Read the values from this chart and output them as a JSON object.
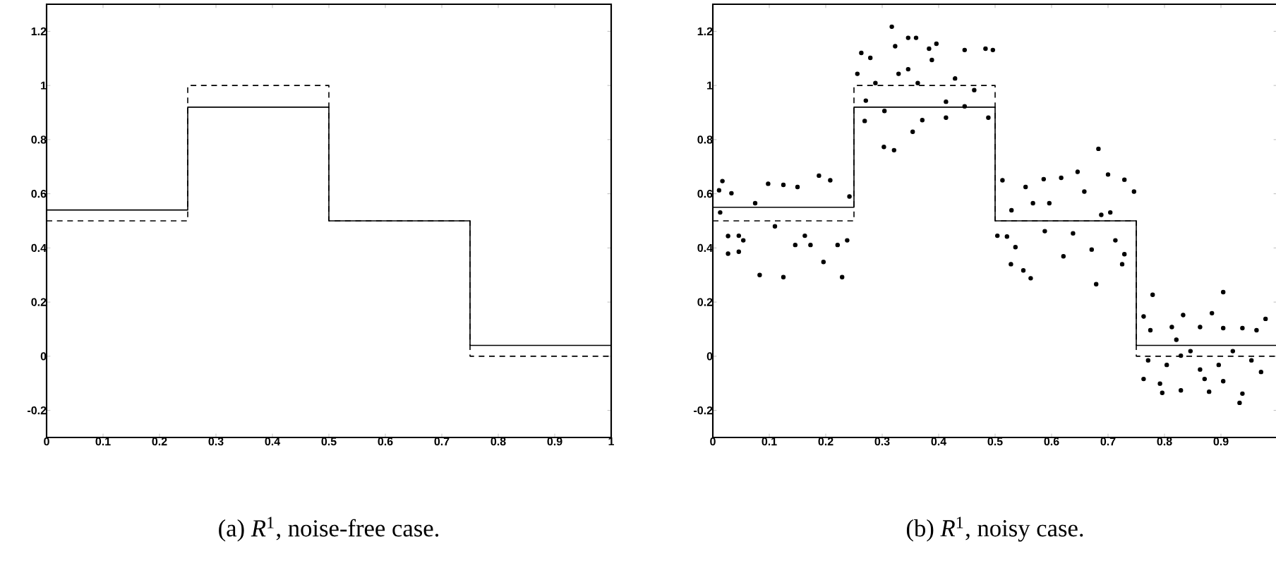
{
  "chart_data": [
    {
      "type": "step",
      "title": "(a) *R*$^{1}$, noise-free case.",
      "xlim": [
        0,
        1
      ],
      "ylim": [
        -0.3,
        1.3
      ],
      "xticks": [
        0,
        0.1,
        0.2,
        0.3,
        0.4,
        0.5,
        0.6,
        0.7,
        0.8,
        0.9,
        1
      ],
      "yticks": [
        -0.2,
        0,
        0.2,
        0.4,
        0.6,
        0.8,
        1,
        1.2
      ],
      "series": [
        {
          "x": [
            0,
            0.25,
            0.5,
            0.75,
            1
          ],
          "values": [
            0.54,
            0.92,
            0.5,
            0.04,
            0.04
          ],
          "color": "#000000",
          "line_style": "solid"
        },
        {
          "x": [
            0,
            0.25,
            0.5,
            0.75,
            1
          ],
          "values": [
            0.5,
            1,
            0.5,
            0,
            0
          ],
          "color": "#000000",
          "line_style": "dashed"
        }
      ]
    },
    {
      "type": "step",
      "title": "(b) *R*$^{1}$, noisy case.",
      "xlim": [
        0,
        1
      ],
      "ylim": [
        -0.3,
        1.3
      ],
      "xticks": [
        0,
        0.1,
        0.2,
        0.3,
        0.4,
        0.5,
        0.6,
        0.7,
        0.8,
        0.9,
        {
          "value": 1,
          "label": null
        }
      ],
      "yticks": [
        -0.2,
        0,
        0.2,
        0.4,
        0.6,
        0.8,
        1,
        1.2
      ],
      "series": [
        {
          "type": "scatter",
          "color": "#000000",
          "x": [
            0.017,
            0.011,
            0.033,
            0.027,
            0.027,
            0.046,
            0.046,
            0.054,
            0.083,
            0.098,
            0.125,
            0.125,
            0.15,
            0.146,
            0.173,
            0.196,
            0.188,
            0.208,
            0.229,
            0.221,
            0.238,
            0.242,
            0.11,
            0.163,
            0.075,
            0.013,
            0.317,
            0.346,
            0.36,
            0.323,
            0.396,
            0.383,
            0.263,
            0.279,
            0.483,
            0.496,
            0.446,
            0.256,
            0.271,
            0.269,
            0.303,
            0.321,
            0.354,
            0.371,
            0.413,
            0.488,
            0.304,
            0.446,
            0.413,
            0.329,
            0.363,
            0.429,
            0.463,
            0.288,
            0.388,
            0.346,
            0.683,
            0.646,
            0.7,
            0.617,
            0.586,
            0.729,
            0.513,
            0.554,
            0.658,
            0.746,
            0.567,
            0.596,
            0.504,
            0.521,
            0.536,
            0.528,
            0.563,
            0.55,
            0.679,
            0.621,
            0.671,
            0.713,
            0.729,
            0.725,
            0.588,
            0.638,
            0.688,
            0.529,
            0.704,
            0.779,
            0.763,
            0.904,
            0.833,
            0.884,
            0.979,
            0.775,
            0.813,
            0.863,
            0.904,
            0.938,
            0.963,
            0.763,
            0.792,
            0.796,
            0.829,
            0.879,
            0.904,
            0.933,
            0.938,
            0.771,
            0.804,
            0.829,
            0.863,
            0.896,
            0.921,
            0.954,
            0.971,
            0.871,
            0.821,
            0.846
          ],
          "values": [
            0.647,
            0.613,
            0.602,
            0.444,
            0.379,
            0.445,
            0.386,
            0.428,
            0.3,
            0.637,
            0.292,
            0.633,
            0.625,
            0.411,
            0.411,
            0.348,
            0.667,
            0.65,
            0.292,
            0.411,
            0.428,
            0.59,
            0.48,
            0.445,
            0.565,
            0.531,
            1.217,
            1.176,
            1.176,
            1.145,
            1.154,
            1.136,
            1.12,
            1.102,
            1.136,
            1.131,
            1.131,
            1.043,
            0.944,
            0.869,
            0.773,
            0.761,
            0.829,
            0.872,
            0.881,
            0.881,
            0.906,
            0.923,
            0.94,
            1.043,
            1.009,
            1.026,
            0.983,
            1.009,
            1.094,
            1.06,
            0.766,
            0.681,
            0.671,
            0.659,
            0.654,
            0.652,
            0.65,
            0.625,
            0.608,
            0.608,
            0.565,
            0.565,
            0.445,
            0.442,
            0.403,
            0.34,
            0.288,
            0.317,
            0.266,
            0.369,
            0.394,
            0.428,
            0.377,
            0.34,
            0.462,
            0.454,
            0.522,
            0.539,
            0.531,
            0.227,
            0.147,
            0.237,
            0.152,
            0.159,
            0.138,
            0.096,
            0.108,
            0.108,
            0.104,
            0.104,
            0.096,
            -0.084,
            -0.101,
            -0.135,
            -0.126,
            -0.131,
            -0.092,
            -0.172,
            -0.138,
            -0.015,
            -0.032,
            0.002,
            -0.049,
            -0.032,
            0.019,
            -0.015,
            -0.058,
            -0.084,
            0.061,
            0.019
          ]
        },
        {
          "x": [
            0,
            0.25,
            0.5,
            0.75,
            1
          ],
          "values": [
            0.55,
            0.92,
            0.5,
            0.04,
            0.04
          ],
          "color": "#000000",
          "line_style": "solid"
        },
        {
          "x": [
            0,
            0.25,
            0.5,
            0.75,
            1
          ],
          "values": [
            0.5,
            1,
            0.5,
            0,
            0
          ],
          "color": "#000000",
          "line_style": "dashed"
        }
      ]
    }
  ]
}
